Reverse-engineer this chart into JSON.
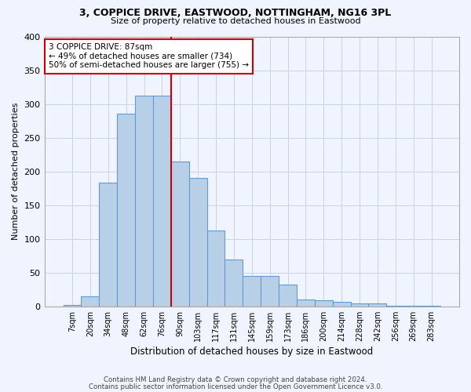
{
  "title1": "3, COPPICE DRIVE, EASTWOOD, NOTTINGHAM, NG16 3PL",
  "title2": "Size of property relative to detached houses in Eastwood",
  "xlabel": "Distribution of detached houses by size in Eastwood",
  "ylabel": "Number of detached properties",
  "footnote1": "Contains HM Land Registry data © Crown copyright and database right 2024.",
  "footnote2": "Contains public sector information licensed under the Open Government Licence v3.0.",
  "bins": [
    "7sqm",
    "20sqm",
    "34sqm",
    "48sqm",
    "62sqm",
    "76sqm",
    "90sqm",
    "103sqm",
    "117sqm",
    "131sqm",
    "145sqm",
    "159sqm",
    "173sqm",
    "186sqm",
    "200sqm",
    "214sqm",
    "228sqm",
    "242sqm",
    "256sqm",
    "269sqm",
    "283sqm"
  ],
  "values": [
    2,
    15,
    183,
    285,
    312,
    312,
    215,
    190,
    113,
    70,
    45,
    45,
    32,
    10,
    9,
    7,
    5,
    5,
    1,
    1,
    1
  ],
  "bar_color": "#b8cfe8",
  "bar_edge_color": "#6699cc",
  "vline_x_index": 5,
  "vline_color": "#cc0000",
  "annotation_line1": "3 COPPICE DRIVE: 87sqm",
  "annotation_line2": "← 49% of detached houses are smaller (734)",
  "annotation_line3": "50% of semi-detached houses are larger (755) →",
  "annotation_box_facecolor": "#ffffff",
  "annotation_box_edgecolor": "#cc0000",
  "ylim": [
    0,
    400
  ],
  "yticks": [
    0,
    50,
    100,
    150,
    200,
    250,
    300,
    350,
    400
  ],
  "background_color": "#f0f4ff",
  "grid_color": "#c8d4ea"
}
